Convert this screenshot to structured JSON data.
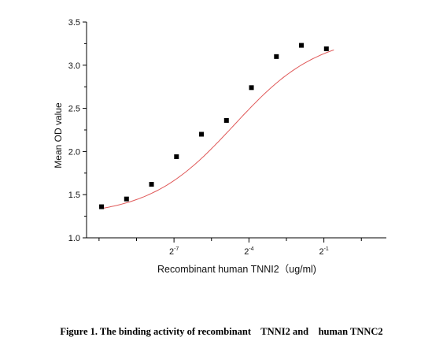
{
  "chart_data": {
    "type": "scatter",
    "title": "",
    "xlabel": "Recombinant human TNNI2（ug/ml)",
    "ylabel": "Mean OD value",
    "x_scale": "log2",
    "xlim": [
      -10.5,
      1.5
    ],
    "ylim": [
      1.0,
      3.5
    ],
    "x_ticks": [
      {
        "exp": -7,
        "label_base": "2",
        "label_exp": "-7"
      },
      {
        "exp": -4,
        "label_base": "2",
        "label_exp": "-4"
      },
      {
        "exp": -1,
        "label_base": "2",
        "label_exp": "-1"
      }
    ],
    "y_ticks": [
      "1.0",
      "1.5",
      "2.0",
      "2.5",
      "3.0",
      "3.5"
    ],
    "points_log2x": [
      -9.9,
      -8.9,
      -7.9,
      -6.9,
      -5.9,
      -4.9,
      -3.9,
      -2.9,
      -1.9,
      -0.9
    ],
    "points_y": [
      1.36,
      1.45,
      1.62,
      1.94,
      2.2,
      2.36,
      2.74,
      3.1,
      3.23,
      3.19
    ],
    "fit_curve": {
      "type": "four-parameter logistic",
      "color": "#e05a5a"
    },
    "marker_color": "#000000",
    "grid": false,
    "legend": "none"
  },
  "caption": "Figure 1. The binding activity of recombinant    TNNI2 and    human TNNC2"
}
